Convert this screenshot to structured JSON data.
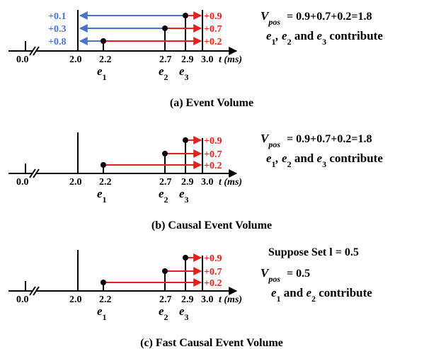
{
  "colors": {
    "positive": "#e8201a",
    "negative": "#4a74c9",
    "axis": "#000000"
  },
  "timeline": {
    "origin_label": "0.0",
    "ticks": [
      "2.0",
      "2.2",
      "2.7",
      "2.9",
      "3.0"
    ],
    "axis_label": "t (ms)",
    "events": [
      {
        "name": "e1",
        "time": "2.2",
        "polarity": "+0.2"
      },
      {
        "name": "e2",
        "time": "2.7",
        "polarity": "+0.7"
      },
      {
        "name": "e3",
        "time": "2.9",
        "polarity": "+0.9"
      }
    ]
  },
  "panels": [
    {
      "caption": "(a) Event Volume",
      "positive_labels": [
        "+0.9",
        "+0.7",
        "+0.2"
      ],
      "negative_labels": [
        "+0.1",
        "+0.3",
        "+0.8"
      ],
      "vpos_equation": "= 0.9+0.7+0.2=1.8",
      "suppose_text": "",
      "contribute_suffix": "and e3 contribute"
    },
    {
      "caption": "(b) Causal Event Volume",
      "positive_labels": [
        "+0.9",
        "+0.7",
        "+0.2"
      ],
      "negative_labels": [],
      "vpos_equation": "= 0.9+0.7+0.2=1.8",
      "suppose_text": "",
      "contribute_suffix": "and e3 contribute"
    },
    {
      "caption": "(c) Fast Causal Event Volume",
      "positive_labels": [
        "+0.9",
        "+0.7",
        "+0.2"
      ],
      "negative_labels": [],
      "vpos_equation": "= 0.5",
      "suppose_text": "Suppose Set l = 0.5",
      "contribute_suffix": "and e2 contribute"
    }
  ]
}
